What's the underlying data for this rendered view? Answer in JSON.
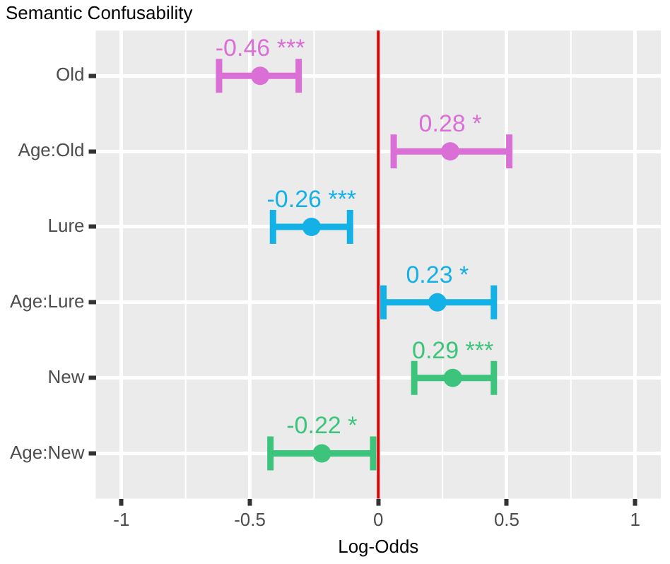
{
  "chart_data": {
    "type": "scatter",
    "orientation": "horizontal",
    "title": "Semantic Confusability",
    "xlabel": "Log-Odds",
    "categories": [
      "Old",
      "Age:Old",
      "Lure",
      "Age:Lure",
      "New",
      "Age:New"
    ],
    "values": [
      -0.46,
      0.28,
      -0.26,
      0.23,
      0.29,
      -0.22
    ],
    "errors": [
      [
        -0.62,
        -0.31
      ],
      [
        0.06,
        0.51
      ],
      [
        -0.41,
        -0.11
      ],
      [
        0.02,
        0.45
      ],
      [
        0.14,
        0.45
      ],
      [
        -0.42,
        -0.02
      ]
    ],
    "value_labels": [
      "-0.46 ***",
      "0.28 *",
      "-0.26 ***",
      "0.23 *",
      "0.29 ***",
      "-0.22 *"
    ],
    "colors": [
      "#da70d6",
      "#da70d6",
      "#14b1e7",
      "#14b1e7",
      "#3cc47c",
      "#3cc47c"
    ],
    "xlim": [
      -1.1,
      1.1
    ],
    "xticks": [
      -1,
      -0.5,
      0,
      0.5,
      1
    ],
    "ref_lines": [
      {
        "axis": "x",
        "value": 0,
        "color": "#e00000"
      }
    ],
    "grid": true,
    "marker": "circle",
    "legend": false
  }
}
